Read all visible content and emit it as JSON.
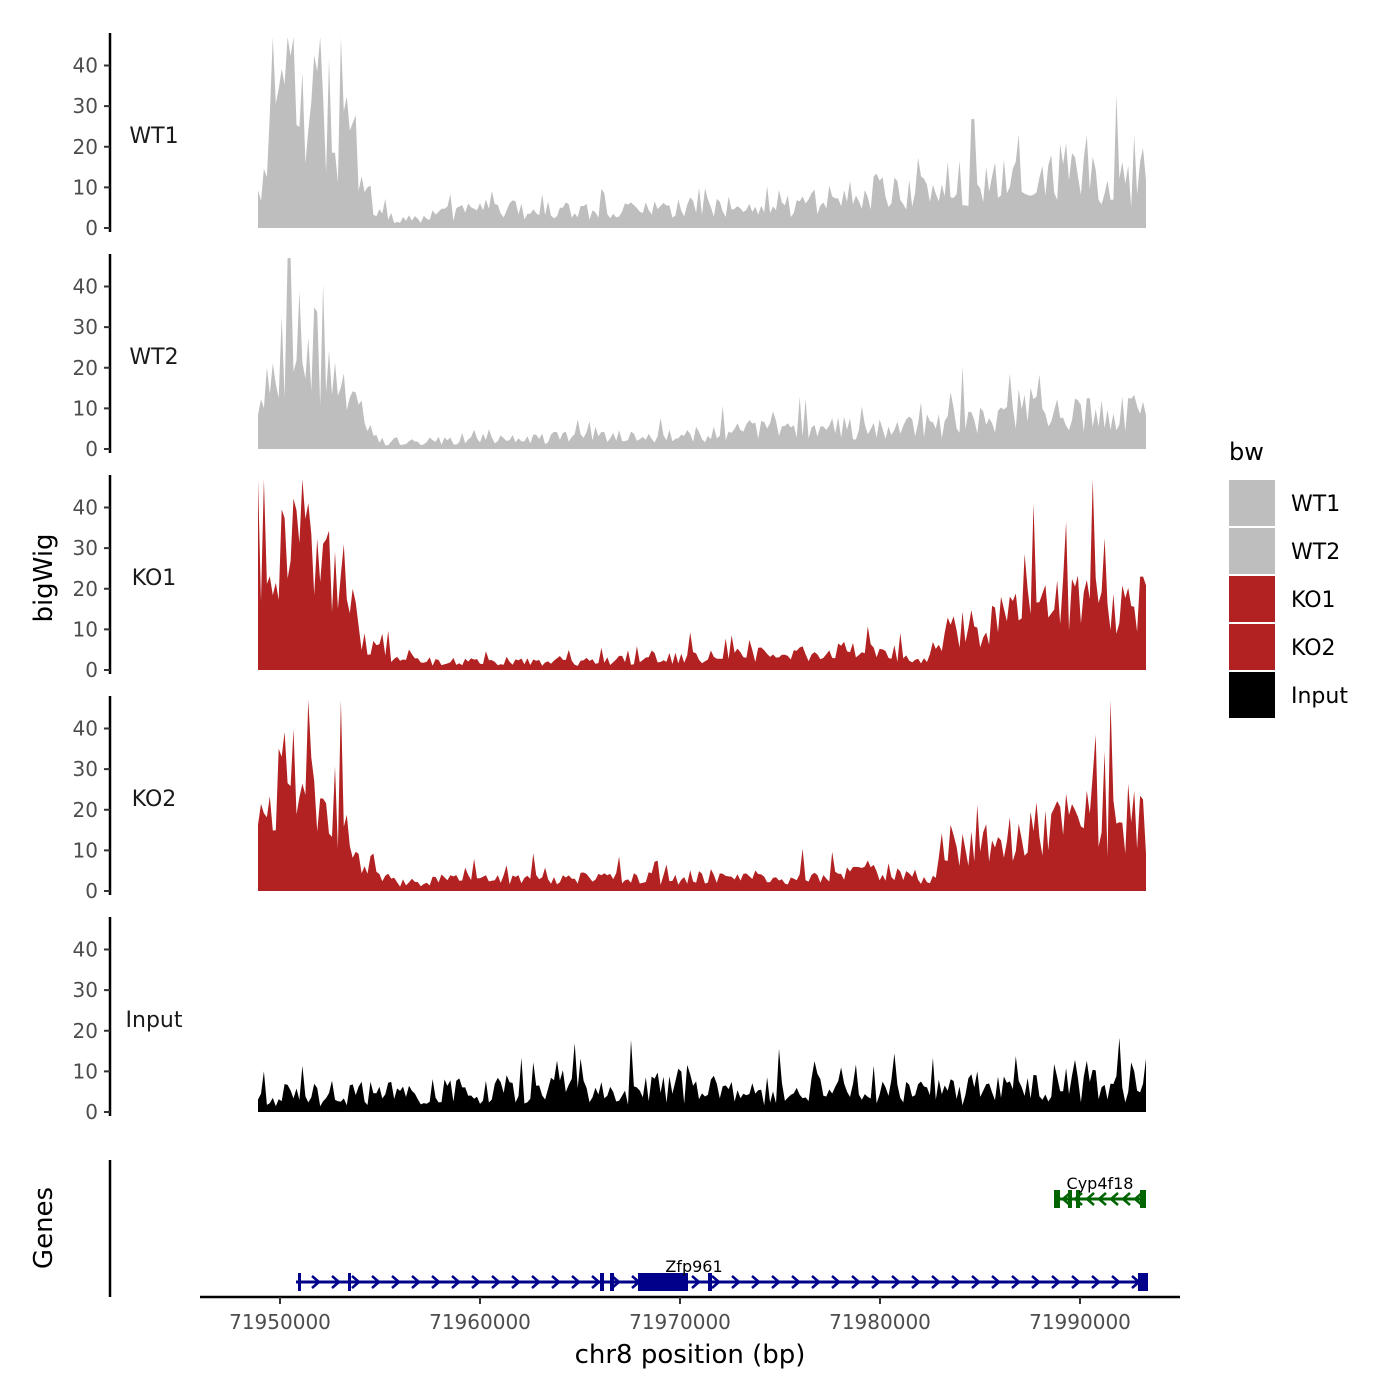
{
  "chart_data": {
    "type": "area",
    "title": "",
    "xlabel": "chr8 position (bp)",
    "ylabel": "bigWig",
    "gene_track_label": "Genes",
    "xlim": [
      71946000,
      71995000
    ],
    "x_ticks": [
      {
        "value": 71950000,
        "label": "71950000"
      },
      {
        "value": 71960000,
        "label": "71960000"
      },
      {
        "value": 71970000,
        "label": "71970000"
      },
      {
        "value": 71980000,
        "label": "71980000"
      },
      {
        "value": 71990000,
        "label": "71990000"
      }
    ],
    "ylim": [
      0,
      48
    ],
    "y_ticks": [
      {
        "value": 0,
        "label": "0"
      },
      {
        "value": 10,
        "label": "10"
      },
      {
        "value": 20,
        "label": "20"
      },
      {
        "value": 30,
        "label": "30"
      },
      {
        "value": 40,
        "label": "40"
      }
    ],
    "region": [
      71948900,
      71993300
    ],
    "legend": {
      "title": "bw",
      "position": "right",
      "items": [
        {
          "label": "WT1",
          "color": "#bebebe"
        },
        {
          "label": "WT2",
          "color": "#bebebe"
        },
        {
          "label": "KO1",
          "color": "#b22222"
        },
        {
          "label": "KO2",
          "color": "#b22222"
        },
        {
          "label": "Input",
          "color": "#000000"
        }
      ]
    },
    "series": [
      {
        "name": "WT1",
        "color": "#bebebe",
        "x": [
          71948900,
          71950500,
          71951200,
          71951800,
          71952600,
          71953500,
          71954800,
          71956500,
          71960000,
          71965000,
          71970000,
          71975000,
          71978000,
          71981000,
          71983000,
          71985000,
          71987000,
          71989000,
          71991000,
          71993300
        ],
        "y": [
          10,
          40,
          28,
          38,
          25,
          22,
          3,
          2,
          5,
          4,
          5,
          4,
          8,
          9,
          8,
          12,
          11,
          14,
          12,
          11
        ],
        "noise": 0.55
      },
      {
        "name": "WT2",
        "color": "#bebebe",
        "x": [
          71948900,
          71950000,
          71951000,
          71952000,
          71953000,
          71953800,
          71955000,
          71960000,
          71965000,
          71970000,
          71975000,
          71980000,
          71984000,
          71988000,
          71990000,
          71993300
        ],
        "y": [
          8,
          22,
          28,
          22,
          15,
          10,
          2,
          2,
          3,
          3,
          5,
          5,
          6,
          12,
          9,
          8
        ],
        "noise": 0.55
      },
      {
        "name": "KO1",
        "color": "#b22222",
        "x": [
          71948900,
          71950000,
          71951000,
          71952000,
          71953200,
          71954200,
          71956000,
          71960000,
          71965000,
          71970000,
          71975000,
          71980000,
          71982500,
          71983500,
          71986000,
          71988000,
          71990000,
          71993300
        ],
        "y": [
          28,
          33,
          28,
          25,
          22,
          6,
          2,
          2,
          2,
          3,
          4,
          5,
          2,
          10,
          11,
          16,
          18,
          15
        ],
        "noise": 0.5
      },
      {
        "name": "KO2",
        "color": "#b22222",
        "x": [
          71948900,
          71950000,
          71951000,
          71952000,
          71953200,
          71954200,
          71956000,
          71960000,
          71965000,
          71970000,
          71975000,
          71980000,
          71982500,
          71983500,
          71986000,
          71988000,
          71990000,
          71993300
        ],
        "y": [
          18,
          25,
          30,
          22,
          20,
          5,
          2,
          3,
          3,
          3,
          3,
          5,
          3,
          12,
          10,
          15,
          17,
          16
        ],
        "noise": 0.5
      },
      {
        "name": "Input",
        "color": "#000000",
        "x": [
          71948900,
          71955000,
          71960000,
          71965000,
          71970000,
          71975000,
          71980000,
          71985000,
          71990000,
          71993300
        ],
        "y": [
          4,
          5,
          5,
          5,
          6,
          5,
          5,
          5,
          6,
          8
        ],
        "noise": 0.7
      }
    ],
    "genes": [
      {
        "name": "Cyp4f18",
        "strand": "-",
        "color": "#006400",
        "row": 1,
        "start": 71988700,
        "end": 71993300,
        "exons": [
          [
            71988700,
            71989000
          ],
          [
            71989400,
            71989600
          ],
          [
            71989800,
            71990000
          ],
          [
            71993000,
            71993300
          ]
        ],
        "label_x": 71991000
      },
      {
        "name": "Zfp961",
        "strand": "+",
        "color": "#00008b",
        "row": 2,
        "start": 71950800,
        "end": 71993400,
        "exons": [
          [
            71950900,
            71951000
          ],
          [
            71953400,
            71953550
          ],
          [
            71966000,
            71966200
          ],
          [
            71966500,
            71966700
          ],
          [
            71967900,
            71970400
          ],
          [
            71971400,
            71971600
          ],
          [
            71992900,
            71993400
          ]
        ],
        "label_x": 71970700
      }
    ]
  }
}
